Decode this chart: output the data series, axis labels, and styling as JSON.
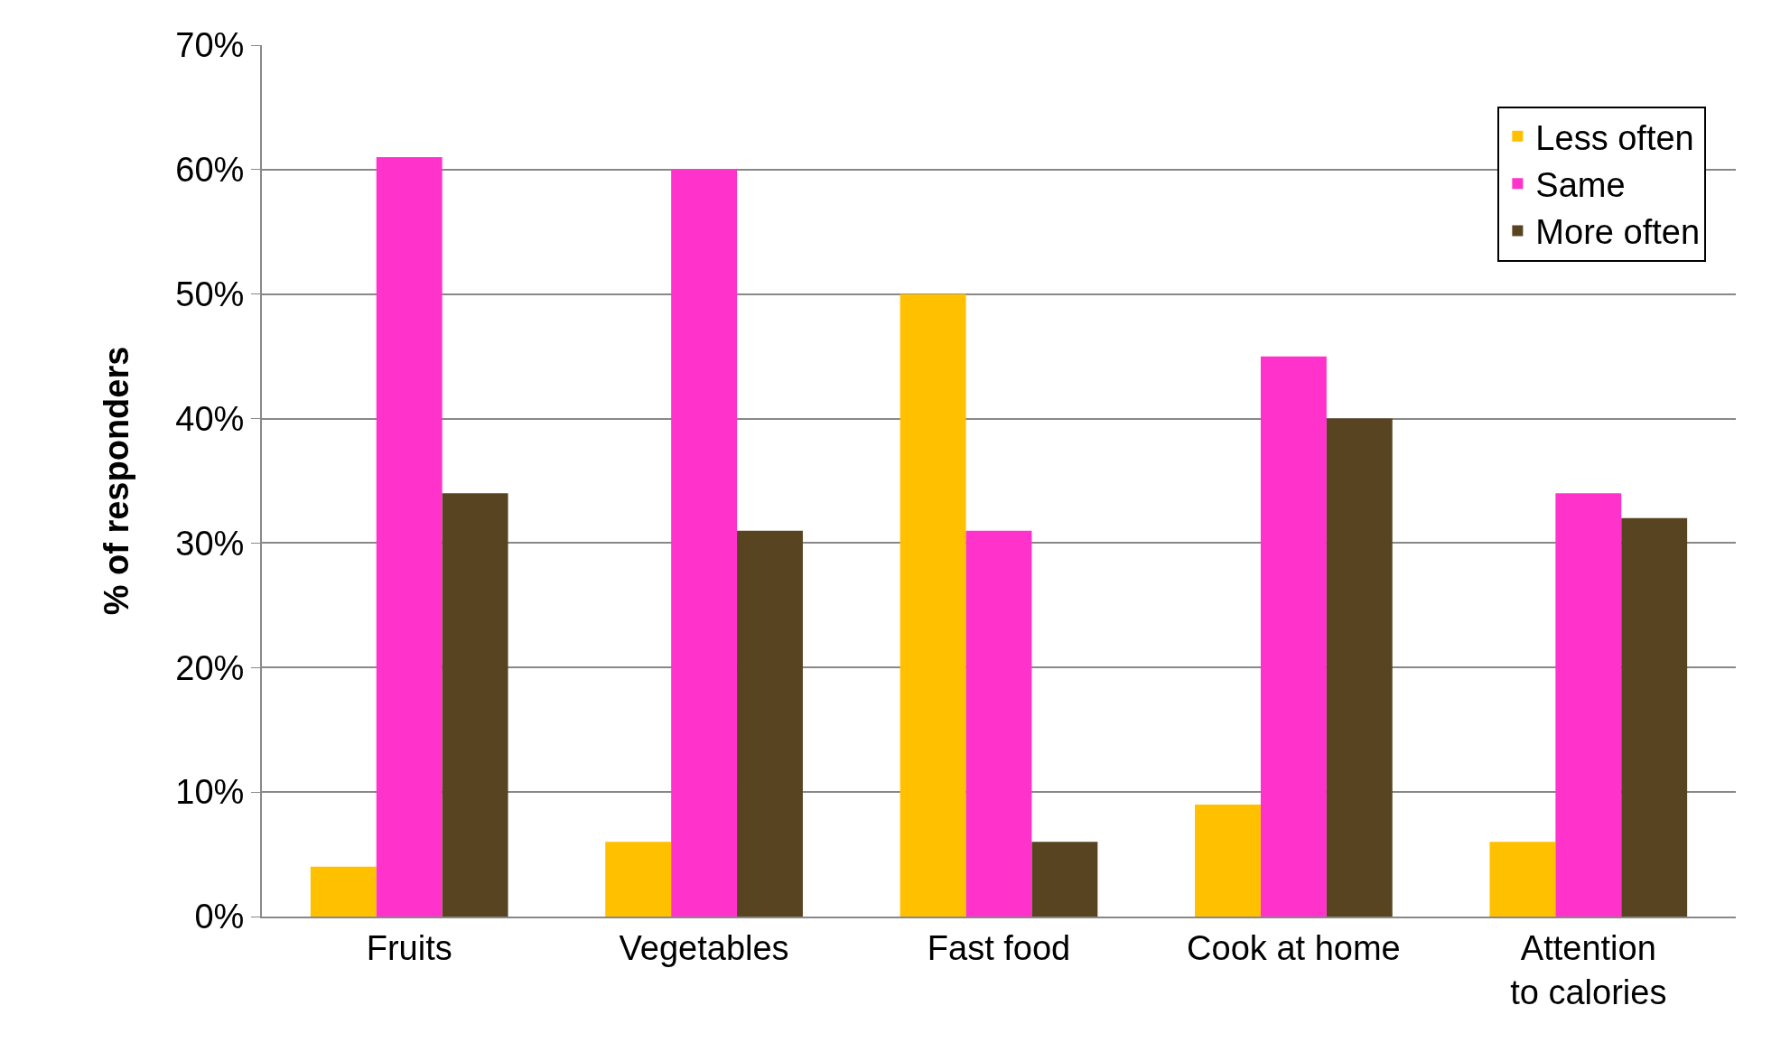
{
  "chart_data": {
    "type": "bar",
    "ylabel": "% of responders",
    "categories": [
      "Fruits",
      "Vegetables",
      "Fast food",
      "Cook at home",
      "Attention to calories"
    ],
    "series": [
      {
        "name": "Less often",
        "color": "#ffc000",
        "values": [
          4,
          6,
          50,
          9,
          6
        ]
      },
      {
        "name": "Same",
        "color": "#ff33cc",
        "values": [
          61,
          60,
          31,
          45,
          34
        ]
      },
      {
        "name": "More often",
        "color": "#584420",
        "values": [
          34,
          31,
          6,
          40,
          32
        ]
      }
    ],
    "ylim": [
      0,
      70
    ],
    "yticks": [
      {
        "value": 0,
        "label": "0%"
      },
      {
        "value": 10,
        "label": "10%"
      },
      {
        "value": 20,
        "label": "20%"
      },
      {
        "value": 30,
        "label": "30%"
      },
      {
        "value": 40,
        "label": "40%"
      },
      {
        "value": 50,
        "label": "50%"
      },
      {
        "value": 60,
        "label": "60%"
      },
      {
        "value": 70,
        "label": "70%"
      }
    ],
    "grid": "y",
    "legend": "top right"
  }
}
